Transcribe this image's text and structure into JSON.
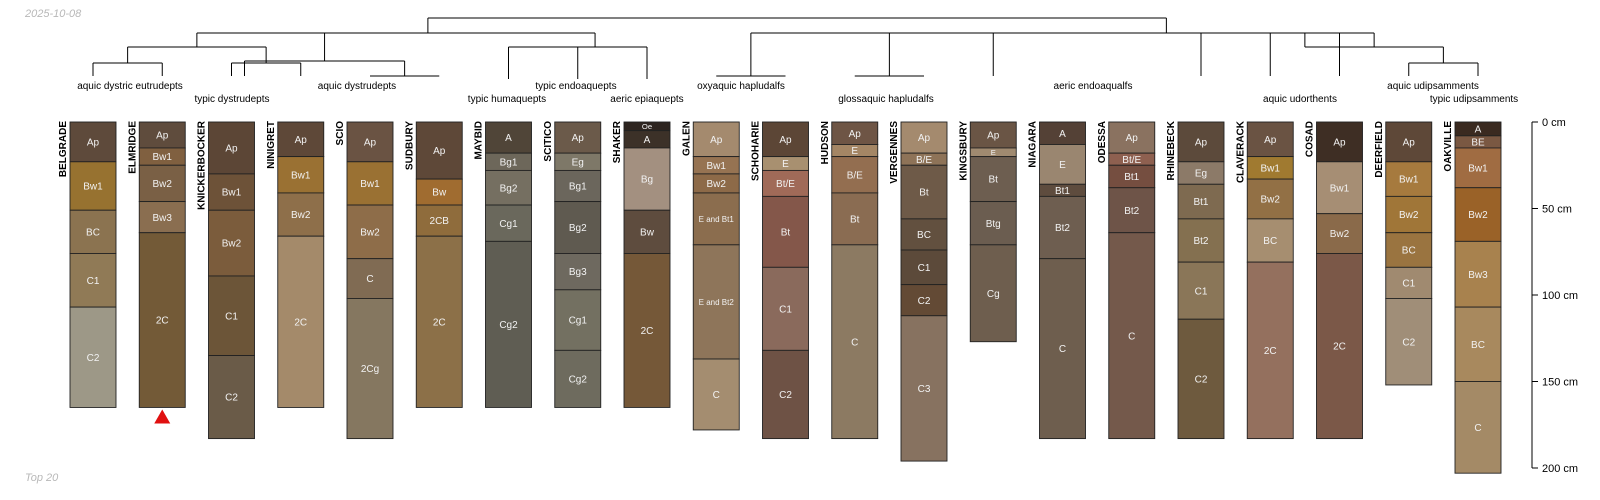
{
  "meta": {
    "date": "2025-10-08",
    "footer": "Top 20",
    "axis_unit": "cm"
  },
  "chart_data": {
    "type": "soil-profile-sketch",
    "depth_range": [
      0,
      200
    ],
    "depth_ticks": [
      0,
      50,
      100,
      150,
      200
    ],
    "profiles": [
      {
        "name": "BELGRADE",
        "horizons": [
          {
            "name": "Ap",
            "top": 0,
            "bottom": 23,
            "color": "#5e4a3b"
          },
          {
            "name": "Bw1",
            "top": 23,
            "bottom": 51,
            "color": "#977230"
          },
          {
            "name": "BC",
            "top": 51,
            "bottom": 76,
            "color": "#8b7350"
          },
          {
            "name": "C1",
            "top": 76,
            "bottom": 107,
            "color": "#907a56"
          },
          {
            "name": "C2",
            "top": 107,
            "bottom": 165,
            "color": "#9d9887"
          }
        ]
      },
      {
        "name": "ELMRIDGE",
        "horizons": [
          {
            "name": "Ap",
            "top": 0,
            "bottom": 15,
            "color": "#5f4c3d"
          },
          {
            "name": "Bw1",
            "top": 15,
            "bottom": 25,
            "color": "#806040"
          },
          {
            "name": "Bw2",
            "top": 25,
            "bottom": 46,
            "color": "#7a6045"
          },
          {
            "name": "Bw3",
            "top": 46,
            "bottom": 64,
            "color": "#8a6e50"
          },
          {
            "name": "2C",
            "top": 64,
            "bottom": 165,
            "color": "#735a37"
          }
        ]
      },
      {
        "name": "KNICKERBOCKER",
        "horizons": [
          {
            "name": "Ap",
            "top": 0,
            "bottom": 30,
            "color": "#5c4636"
          },
          {
            "name": "Bw1",
            "top": 30,
            "bottom": 51,
            "color": "#6d5238"
          },
          {
            "name": "Bw2",
            "top": 51,
            "bottom": 89,
            "color": "#7b5c3c"
          },
          {
            "name": "C1",
            "top": 89,
            "bottom": 135,
            "color": "#6c5538"
          },
          {
            "name": "C2",
            "top": 135,
            "bottom": 183,
            "color": "#6a5b48"
          }
        ]
      },
      {
        "name": "NINIGRET",
        "horizons": [
          {
            "name": "Ap",
            "top": 0,
            "bottom": 20,
            "color": "#5e4838"
          },
          {
            "name": "Bw1",
            "top": 20,
            "bottom": 41,
            "color": "#9a7133"
          },
          {
            "name": "Bw2",
            "top": 41,
            "bottom": 66,
            "color": "#8e6f4a"
          },
          {
            "name": "2C",
            "top": 66,
            "bottom": 165,
            "color": "#a48a6a"
          }
        ]
      },
      {
        "name": "SCIO",
        "horizons": [
          {
            "name": "Ap",
            "top": 0,
            "bottom": 23,
            "color": "#6a5343"
          },
          {
            "name": "Bw1",
            "top": 23,
            "bottom": 48,
            "color": "#9a7133"
          },
          {
            "name": "Bw2",
            "top": 48,
            "bottom": 79,
            "color": "#8e6d49"
          },
          {
            "name": "C",
            "top": 79,
            "bottom": 102,
            "color": "#806b53"
          },
          {
            "name": "2Cg",
            "top": 102,
            "bottom": 183,
            "color": "#857760"
          }
        ]
      },
      {
        "name": "SUDBURY",
        "horizons": [
          {
            "name": "Ap",
            "top": 0,
            "bottom": 33,
            "color": "#5e4838"
          },
          {
            "name": "Bw",
            "top": 33,
            "bottom": 48,
            "color": "#a06c30"
          },
          {
            "name": "2CB",
            "top": 48,
            "bottom": 66,
            "color": "#8f6c3c"
          },
          {
            "name": "2C",
            "top": 66,
            "bottom": 165,
            "color": "#8c7048"
          }
        ]
      },
      {
        "name": "MAYBID",
        "horizons": [
          {
            "name": "A",
            "top": 0,
            "bottom": 18,
            "color": "#504538"
          },
          {
            "name": "Bg1",
            "top": 18,
            "bottom": 28,
            "color": "#6d675a"
          },
          {
            "name": "Bg2",
            "top": 28,
            "bottom": 48,
            "color": "#756f61"
          },
          {
            "name": "Cg1",
            "top": 48,
            "bottom": 69,
            "color": "#6a685c"
          },
          {
            "name": "Cg2",
            "top": 69,
            "bottom": 165,
            "color": "#5f5d53"
          }
        ]
      },
      {
        "name": "SCITICO",
        "horizons": [
          {
            "name": "Ap",
            "top": 0,
            "bottom": 18,
            "color": "#6b5a4a"
          },
          {
            "name": "Eg",
            "top": 18,
            "bottom": 28,
            "color": "#7e7868"
          },
          {
            "name": "Bg1",
            "top": 28,
            "bottom": 46,
            "color": "#6b665c"
          },
          {
            "name": "Bg2",
            "top": 46,
            "bottom": 76,
            "color": "#5f5a50"
          },
          {
            "name": "Bg3",
            "top": 76,
            "bottom": 97,
            "color": "#6e695f"
          },
          {
            "name": "Cg1",
            "top": 97,
            "bottom": 132,
            "color": "#737061"
          },
          {
            "name": "Cg2",
            "top": 132,
            "bottom": 165,
            "color": "#6e6b5e"
          }
        ]
      },
      {
        "name": "SHAKER",
        "horizons": [
          {
            "name": "Oe",
            "top": 0,
            "bottom": 5,
            "color": "#2e2520"
          },
          {
            "name": "A",
            "top": 5,
            "bottom": 15,
            "color": "#3c3128"
          },
          {
            "name": "Bg",
            "top": 15,
            "bottom": 51,
            "color": "#a39080"
          },
          {
            "name": "Bw",
            "top": 51,
            "bottom": 76,
            "color": "#5e4c3e"
          },
          {
            "name": "2C",
            "top": 76,
            "bottom": 165,
            "color": "#755838"
          }
        ]
      },
      {
        "name": "GALEN",
        "horizons": [
          {
            "name": "Ap",
            "top": 0,
            "bottom": 20,
            "color": "#a48a6e"
          },
          {
            "name": "Bw1",
            "top": 20,
            "bottom": 30,
            "color": "#967352"
          },
          {
            "name": "Bw2",
            "top": 30,
            "bottom": 41,
            "color": "#8d6a48"
          },
          {
            "name": "E and Bt1",
            "top": 41,
            "bottom": 71,
            "color": "#8b6d4e"
          },
          {
            "name": "E and Bt2",
            "top": 71,
            "bottom": 137,
            "color": "#8e755a"
          },
          {
            "name": "C",
            "top": 137,
            "bottom": 178,
            "color": "#a48d70"
          }
        ]
      },
      {
        "name": "SCHOHARIE",
        "horizons": [
          {
            "name": "Ap",
            "top": 0,
            "bottom": 20,
            "color": "#5c4636"
          },
          {
            "name": "E",
            "top": 20,
            "bottom": 28,
            "color": "#a89070"
          },
          {
            "name": "Bt/E",
            "top": 28,
            "bottom": 43,
            "color": "#a06a58"
          },
          {
            "name": "Bt",
            "top": 43,
            "bottom": 84,
            "color": "#84574a"
          },
          {
            "name": "C1",
            "top": 84,
            "bottom": 132,
            "color": "#8a6a5c"
          },
          {
            "name": "C2",
            "top": 132,
            "bottom": 183,
            "color": "#6e5245"
          }
        ]
      },
      {
        "name": "HUDSON",
        "horizons": [
          {
            "name": "Ap",
            "top": 0,
            "bottom": 13,
            "color": "#6e5545"
          },
          {
            "name": "E",
            "top": 13,
            "bottom": 20,
            "color": "#a48665"
          },
          {
            "name": "B/E",
            "top": 20,
            "bottom": 41,
            "color": "#936e50"
          },
          {
            "name": "Bt",
            "top": 41,
            "bottom": 71,
            "color": "#8a6c52"
          },
          {
            "name": "C",
            "top": 71,
            "bottom": 183,
            "color": "#8c7a62"
          }
        ]
      },
      {
        "name": "VERGENNES",
        "horizons": [
          {
            "name": "Ap",
            "top": 0,
            "bottom": 18,
            "color": "#a48a6e"
          },
          {
            "name": "B/E",
            "top": 18,
            "bottom": 25,
            "color": "#8e7358"
          },
          {
            "name": "Bt",
            "top": 25,
            "bottom": 56,
            "color": "#6e5a48"
          },
          {
            "name": "BC",
            "top": 56,
            "bottom": 74,
            "color": "#62503f"
          },
          {
            "name": "C1",
            "top": 74,
            "bottom": 94,
            "color": "#5c4a3a"
          },
          {
            "name": "C2",
            "top": 94,
            "bottom": 112,
            "color": "#634a35"
          },
          {
            "name": "C3",
            "top": 112,
            "bottom": 196,
            "color": "#877260"
          }
        ]
      },
      {
        "name": "KINGSBURY",
        "horizons": [
          {
            "name": "Ap",
            "top": 0,
            "bottom": 15,
            "color": "#6a5545"
          },
          {
            "name": "E",
            "top": 15,
            "bottom": 20,
            "color": "#a08a70"
          },
          {
            "name": "Bt",
            "top": 20,
            "bottom": 46,
            "color": "#6d5e50"
          },
          {
            "name": "Btg",
            "top": 46,
            "bottom": 71,
            "color": "#6b5d50"
          },
          {
            "name": "Cg",
            "top": 71,
            "bottom": 127,
            "color": "#6e5e4e"
          }
        ]
      },
      {
        "name": "NIAGARA",
        "horizons": [
          {
            "name": "A",
            "top": 0,
            "bottom": 13,
            "color": "#544136"
          },
          {
            "name": "E",
            "top": 13,
            "bottom": 36,
            "color": "#9a8670"
          },
          {
            "name": "Bt1",
            "top": 36,
            "bottom": 43,
            "color": "#5e4c3e"
          },
          {
            "name": "Bt2",
            "top": 43,
            "bottom": 79,
            "color": "#6e5e50"
          },
          {
            "name": "C",
            "top": 79,
            "bottom": 183,
            "color": "#6e5e4e"
          }
        ]
      },
      {
        "name": "ODESSA",
        "horizons": [
          {
            "name": "Ap",
            "top": 0,
            "bottom": 18,
            "color": "#8a7260"
          },
          {
            "name": "Bt/E",
            "top": 18,
            "bottom": 25,
            "color": "#8e6050"
          },
          {
            "name": "Bt1",
            "top": 25,
            "bottom": 38,
            "color": "#754e40"
          },
          {
            "name": "Bt2",
            "top": 38,
            "bottom": 64,
            "color": "#6e5448"
          },
          {
            "name": "C",
            "top": 64,
            "bottom": 183,
            "color": "#74594b"
          }
        ]
      },
      {
        "name": "RHINEBECK",
        "horizons": [
          {
            "name": "Ap",
            "top": 0,
            "bottom": 23,
            "color": "#5c4a3b"
          },
          {
            "name": "Eg",
            "top": 23,
            "bottom": 36,
            "color": "#8c7a68"
          },
          {
            "name": "Bt1",
            "top": 36,
            "bottom": 56,
            "color": "#7e6a50"
          },
          {
            "name": "Bt2",
            "top": 56,
            "bottom": 81,
            "color": "#847050"
          },
          {
            "name": "C1",
            "top": 81,
            "bottom": 114,
            "color": "#8a7658"
          },
          {
            "name": "C2",
            "top": 114,
            "bottom": 183,
            "color": "#6e5a3e"
          }
        ]
      },
      {
        "name": "CLAVERACK",
        "horizons": [
          {
            "name": "Ap",
            "top": 0,
            "bottom": 20,
            "color": "#6a5343"
          },
          {
            "name": "Bw1",
            "top": 20,
            "bottom": 33,
            "color": "#a07a30"
          },
          {
            "name": "Bw2",
            "top": 33,
            "bottom": 56,
            "color": "#927045"
          },
          {
            "name": "BC",
            "top": 56,
            "bottom": 81,
            "color": "#a68e70"
          },
          {
            "name": "2C",
            "top": 81,
            "bottom": 183,
            "color": "#94705e"
          }
        ]
      },
      {
        "name": "COSAD",
        "horizons": [
          {
            "name": "Ap",
            "top": 0,
            "bottom": 23,
            "color": "#3e2e24"
          },
          {
            "name": "Bw1",
            "top": 23,
            "bottom": 53,
            "color": "#a68e74"
          },
          {
            "name": "Bw2",
            "top": 53,
            "bottom": 76,
            "color": "#8a6a4a"
          },
          {
            "name": "2C",
            "top": 76,
            "bottom": 183,
            "color": "#7b5848"
          }
        ]
      },
      {
        "name": "DEERFIELD",
        "horizons": [
          {
            "name": "Ap",
            "top": 0,
            "bottom": 23,
            "color": "#5e4838"
          },
          {
            "name": "Bw1",
            "top": 23,
            "bottom": 43,
            "color": "#a67a3e"
          },
          {
            "name": "Bw2",
            "top": 43,
            "bottom": 64,
            "color": "#a07638"
          },
          {
            "name": "BC",
            "top": 64,
            "bottom": 84,
            "color": "#9a7440"
          },
          {
            "name": "C1",
            "top": 84,
            "bottom": 102,
            "color": "#a08a70"
          },
          {
            "name": "C2",
            "top": 102,
            "bottom": 152,
            "color": "#a08e78"
          }
        ]
      },
      {
        "name": "OAKVILLE",
        "horizons": [
          {
            "name": "A",
            "top": 0,
            "bottom": 8,
            "color": "#3a2a20"
          },
          {
            "name": "BE",
            "top": 8,
            "bottom": 15,
            "color": "#7a5842"
          },
          {
            "name": "Bw1",
            "top": 15,
            "bottom": 38,
            "color": "#a06c42"
          },
          {
            "name": "Bw2",
            "top": 38,
            "bottom": 69,
            "color": "#9a6228"
          },
          {
            "name": "Bw3",
            "top": 69,
            "bottom": 107,
            "color": "#a8824e"
          },
          {
            "name": "BC",
            "top": 107,
            "bottom": 150,
            "color": "#a8895e"
          },
          {
            "name": "C",
            "top": 150,
            "bottom": 203,
            "color": "#a48a66"
          }
        ]
      }
    ],
    "clusters": [
      {
        "label": "aquic dystric eutrudepts",
        "members": [
          "BELGRADE",
          "ELMRIDGE"
        ]
      },
      {
        "label": "typic dystrudepts",
        "members": [
          "KNICKERBOCKER",
          "NINIGRET"
        ]
      },
      {
        "label": "aquic dystrudepts",
        "members": [
          "SCIO",
          "SUDBURY"
        ]
      },
      {
        "label": "typic humaquepts",
        "members": [
          "MAYBID"
        ]
      },
      {
        "label": "typic endoaquepts",
        "members": [
          "SCITICO"
        ]
      },
      {
        "label": "aeric epiaquepts",
        "members": [
          "SHAKER"
        ]
      },
      {
        "label": "oxyaquic hapludalfs",
        "members": [
          "GALEN",
          "SCHOHARIE"
        ]
      },
      {
        "label": "glossaquic hapludalfs",
        "members": [
          "HUDSON",
          "VERGENNES"
        ]
      },
      {
        "label": "aeric endoaqualfs",
        "members": [
          "KINGSBURY",
          "NIAGARA",
          "ODESSA",
          "RHINEBECK"
        ]
      },
      {
        "label": "aquic udorthents",
        "members": [
          "CLAVERACK",
          "COSAD"
        ]
      },
      {
        "label": "aquic udipsamments",
        "members": [
          "DEERFIELD"
        ]
      },
      {
        "label": "typic udipsamments",
        "members": [
          "OAKVILLE"
        ]
      }
    ],
    "marker": {
      "profile": "ELMRIDGE",
      "shape": "triangle",
      "color": "#e01010"
    }
  }
}
